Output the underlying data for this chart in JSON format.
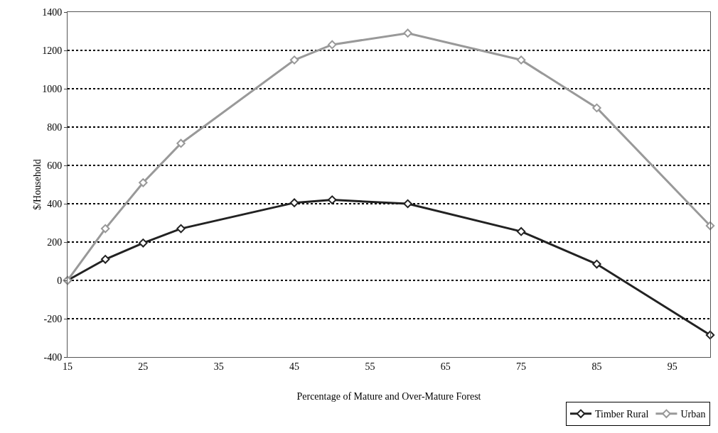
{
  "chart_data": {
    "type": "line",
    "xlabel": "Percentage of Mature and Over-Mature Forest",
    "ylabel": "$/Household",
    "x": [
      15,
      20,
      25,
      30,
      45,
      50,
      60,
      75,
      85,
      100
    ],
    "series": [
      {
        "name": "Timber Rural",
        "color": "#222222",
        "values": [
          0,
          110,
          195,
          270,
          405,
          420,
          400,
          255,
          85,
          -285
        ]
      },
      {
        "name": "Urban",
        "color": "#999999",
        "values": [
          0,
          270,
          510,
          715,
          1150,
          1230,
          1290,
          1150,
          900,
          285
        ]
      }
    ],
    "xlim": [
      15,
      100
    ],
    "xticks": [
      15,
      25,
      35,
      45,
      55,
      65,
      75,
      85,
      95
    ],
    "ylim": [
      -400,
      1400
    ],
    "yticks": [
      -400,
      -200,
      0,
      200,
      400,
      600,
      800,
      1000,
      1200,
      1400
    ],
    "grid": "y",
    "legend": "bottom right",
    "marker": "diamond",
    "line_style": "solid"
  }
}
